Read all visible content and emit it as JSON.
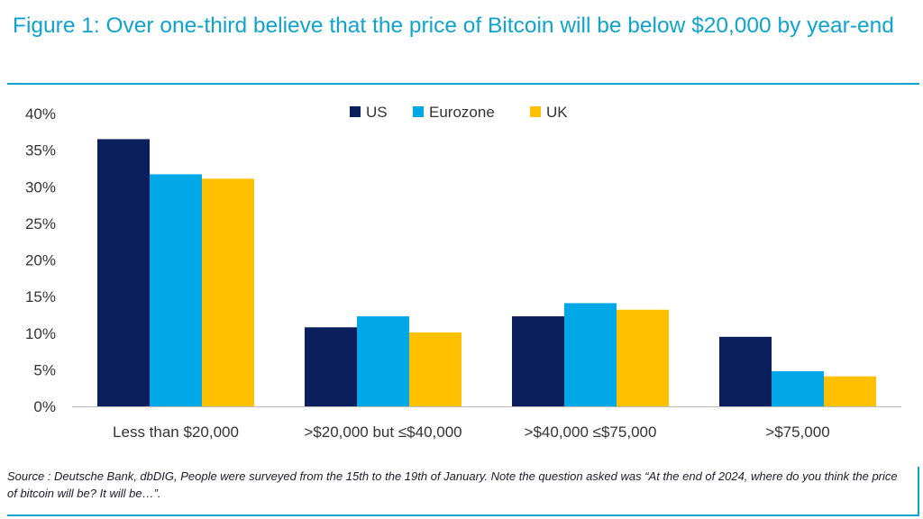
{
  "title": "Figure 1: Over one-third believe that the price of Bitcoin will be below $20,000 by year-end",
  "source": "Source : Deutsche Bank, dbDIG, People were surveyed from the 15th to the 19th of January. Note the question asked was “At the end of 2024, where do you think the price of bitcoin will be? It will be…”.",
  "colors": {
    "accent": "#0fa3cf",
    "US": "#0b1f5c",
    "Eurozone": "#00a8e8",
    "UK": "#ffc000"
  },
  "chart_data": {
    "type": "bar",
    "categories": [
      "Less than $20,000",
      ">$20,000 but ≤$40,000",
      ">$40,000 ≤$75,000",
      ">$75,000"
    ],
    "series": [
      {
        "name": "US",
        "values": [
          36.5,
          10.8,
          12.3,
          9.5
        ]
      },
      {
        "name": "Eurozone",
        "values": [
          31.7,
          12.3,
          14.1,
          4.8
        ]
      },
      {
        "name": "UK",
        "values": [
          31.1,
          10.1,
          13.2,
          4.1
        ]
      }
    ],
    "ylim": [
      0,
      40
    ],
    "yticks": [
      "0%",
      "5%",
      "10%",
      "15%",
      "20%",
      "25%",
      "30%",
      "35%",
      "40%"
    ],
    "grid": false,
    "legend": "top-center"
  }
}
